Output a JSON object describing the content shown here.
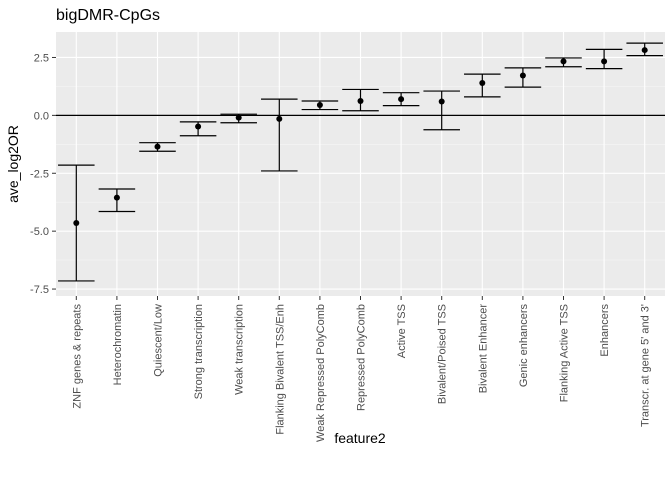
{
  "chart_data": {
    "type": "scatter",
    "title": "bigDMR-CpGs",
    "xlabel": "feature2",
    "ylabel": "ave_log2OR",
    "ylim": [
      -7.8,
      3.6
    ],
    "yticks": [
      -7.5,
      -5.0,
      -2.5,
      0.0,
      2.5
    ],
    "ytick_labels": [
      "-7.5",
      "-5.0",
      "-2.5",
      "0.0",
      "2.5"
    ],
    "reference_line_y": 0,
    "grid": true,
    "categories": [
      "ZNF genes & repeats",
      "Heterochromatin",
      "Quiescent/Low",
      "Strong transcription",
      "Weak transcription",
      "Flanking Bivalent TSS/Enh",
      "Weak Repressed PolyComb",
      "Repressed PolyComb",
      "Active TSS",
      "Bivalent/Poised TSS",
      "Bivalent Enhancer",
      "Genic enhancers",
      "Flanking Active TSS",
      "Enhancers",
      "Transcr. at gene 5' and 3'"
    ],
    "values": [
      -4.65,
      -3.55,
      -1.35,
      -0.48,
      -0.1,
      -0.15,
      0.45,
      0.62,
      0.7,
      0.6,
      1.4,
      1.72,
      2.33,
      2.33,
      2.82
    ],
    "error_low": [
      -7.15,
      -4.15,
      -1.55,
      -0.88,
      -0.32,
      -2.4,
      0.25,
      0.2,
      0.42,
      -0.62,
      0.8,
      1.22,
      2.1,
      2.02,
      2.58
    ],
    "error_high": [
      -2.15,
      -3.18,
      -1.18,
      -0.28,
      0.05,
      0.7,
      0.62,
      1.12,
      0.98,
      1.05,
      1.78,
      2.05,
      2.48,
      2.85,
      3.12
    ]
  }
}
